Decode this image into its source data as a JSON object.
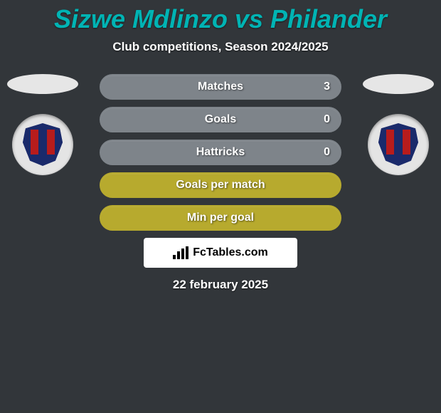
{
  "title_text": "Sizwe Mdlinzo vs Philander",
  "title_color": "#00b4b4",
  "subtitle": "Club competitions, Season 2024/2025",
  "date": "22 february 2025",
  "background_color": "#32363a",
  "avatar_bg": "#e6e6e6",
  "club_logo": {
    "circle_bg": "#e4e4e4",
    "shield_bg": "#1a2a6b",
    "stripe_colors": [
      "#1a2a6b",
      "#b71c1c",
      "#1a2a6b",
      "#b71c1c",
      "#1a2a6b"
    ]
  },
  "bars": {
    "height": 36,
    "radius": 18,
    "label_fontsize": 16,
    "value_fontsize": 16,
    "items": [
      {
        "label": "Matches",
        "value": "3",
        "bg": "#7e848a",
        "border": "#7e848a"
      },
      {
        "label": "Goals",
        "value": "0",
        "bg": "#7e848a",
        "border": "#7e848a"
      },
      {
        "label": "Hattricks",
        "value": "0",
        "bg": "#7e848a",
        "border": "#7e848a"
      },
      {
        "label": "Goals per match",
        "value": "",
        "bg": "#b7aa2e",
        "border": "#b7aa2e"
      },
      {
        "label": "Min per goal",
        "value": "",
        "bg": "#b7aa2e",
        "border": "#b7aa2e"
      }
    ]
  },
  "branding": {
    "text": "FcTables.com",
    "bg": "#ffffff",
    "fg": "#000000"
  }
}
